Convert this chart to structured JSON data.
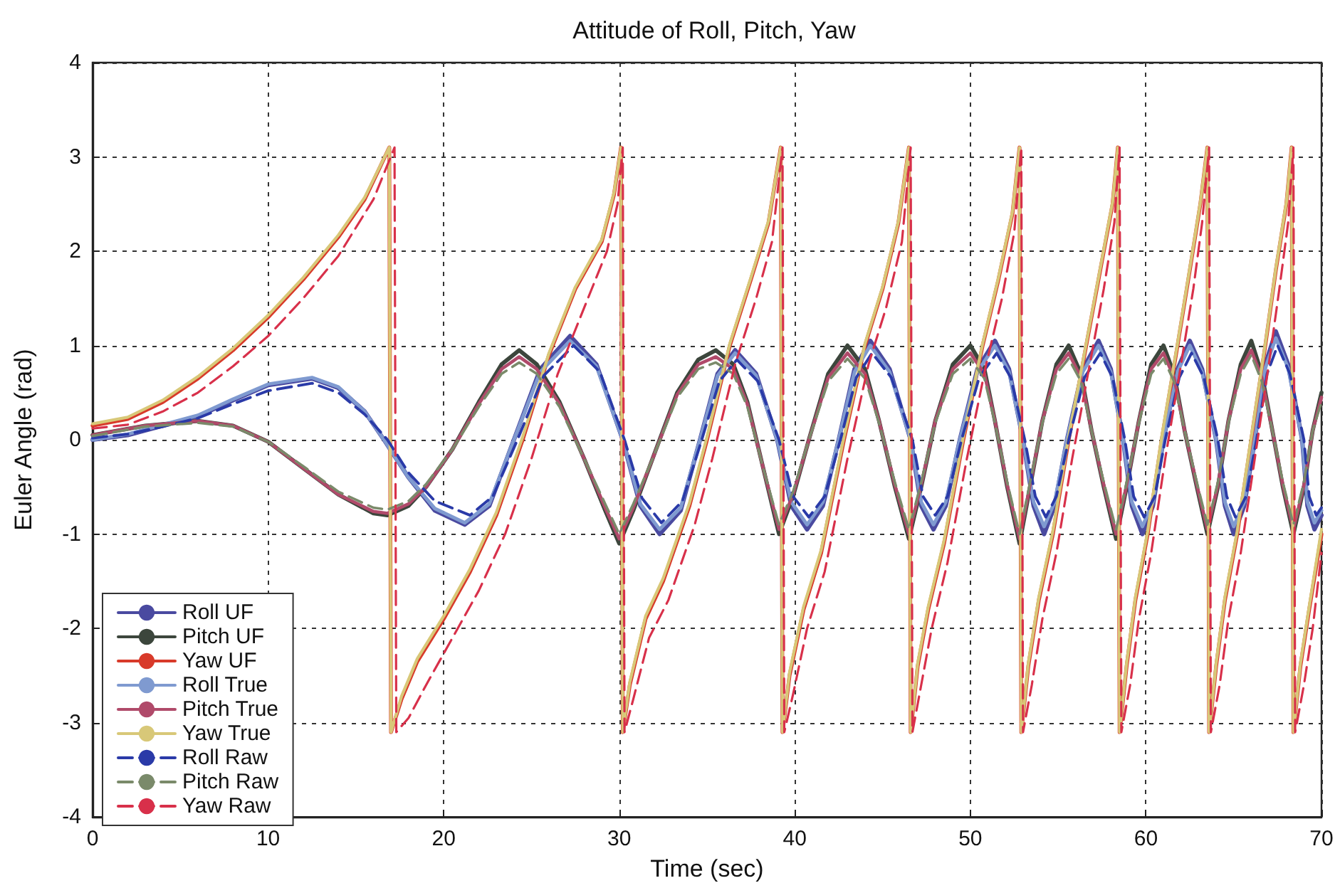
{
  "chart_data": {
    "type": "line",
    "title": "Attitude of Roll, Pitch, Yaw",
    "xlabel": "Time (sec)",
    "ylabel": "Euler Angle (rad)",
    "xlim": [
      0,
      70
    ],
    "xticks": [
      0,
      10,
      20,
      30,
      40,
      50,
      60,
      70
    ],
    "ylim": [
      -4,
      4
    ],
    "yticks": [
      -4,
      -3,
      -2,
      -1,
      0,
      1,
      2,
      3,
      4
    ],
    "grid": true,
    "legend": "bottom left",
    "marker": "none",
    "series": [
      {
        "name": "Roll UF",
        "color": "#4a4aa0",
        "line_style": "solid",
        "x": [
          0,
          2,
          4,
          6,
          8,
          10,
          12.5,
          14,
          15.5,
          16.6,
          18,
          19.5,
          21.2,
          22.6,
          24,
          25.5,
          27.2,
          28.7,
          30.2,
          31.2,
          32.3,
          33.5,
          34.6,
          35.6,
          36.6,
          37.8,
          39,
          39.8,
          40.7,
          41.6,
          42.5,
          43.4,
          44.3,
          45.4,
          46.6,
          47.2,
          47.9,
          48.6,
          49.4,
          50.4,
          51.4,
          52.2,
          53,
          53.6,
          54.2,
          54.8,
          55.5,
          56.4,
          57.3,
          58,
          58.7,
          59.2,
          59.8,
          60.4,
          61,
          61.8,
          62.5,
          63.2,
          64,
          64.5,
          65,
          65.6,
          66.2,
          66.8,
          67.4,
          68.1,
          68.9,
          69.2,
          69.6,
          70
        ],
        "values": [
          0,
          0.05,
          0.15,
          0.25,
          0.42,
          0.58,
          0.65,
          0.55,
          0.3,
          0,
          -0.4,
          -0.75,
          -0.9,
          -0.7,
          0,
          0.75,
          1.1,
          0.8,
          0,
          -0.7,
          -1,
          -0.75,
          0,
          0.7,
          0.95,
          0.7,
          0,
          -0.7,
          -0.95,
          -0.7,
          0,
          0.75,
          1.05,
          0.75,
          0,
          -0.7,
          -0.95,
          -0.7,
          0,
          0.75,
          1.05,
          0.75,
          0,
          -0.7,
          -1,
          -0.7,
          0,
          0.75,
          1.05,
          0.75,
          0,
          -0.7,
          -1,
          -0.7,
          0,
          0.75,
          1.05,
          0.75,
          0,
          -0.7,
          -1,
          -0.7,
          0,
          0.8,
          1.15,
          0.8,
          0,
          -0.7,
          -0.95,
          -0.8
        ]
      },
      {
        "name": "Pitch UF",
        "color": "#3c463c",
        "line_style": "solid",
        "x": [
          0,
          3,
          6,
          8,
          10,
          12,
          14,
          16,
          16.8,
          18,
          19,
          20.5,
          22,
          23.3,
          24.3,
          25.3,
          26.6,
          28,
          29.2,
          30,
          30.8,
          31.9,
          33.3,
          34.5,
          35.5,
          36.5,
          37.3,
          38.2,
          39.1,
          39.9,
          40.8,
          41.9,
          43,
          44,
          44.8,
          45.7,
          46.5,
          47.2,
          48,
          49,
          50,
          50.8,
          51.4,
          52.1,
          52.8,
          53.4,
          54.1,
          54.9,
          55.6,
          56.3,
          56.9,
          57.6,
          58.3,
          58.9,
          59.6,
          60.3,
          61,
          61.6,
          62.2,
          62.9,
          63.5,
          64.1,
          64.7,
          65.4,
          66,
          66.6,
          67.2,
          67.8,
          68.4,
          69,
          69.5,
          70
        ],
        "values": [
          0.05,
          0.15,
          0.2,
          0.15,
          -0.02,
          -0.3,
          -0.58,
          -0.78,
          -0.8,
          -0.7,
          -0.5,
          -0.1,
          0.4,
          0.8,
          0.95,
          0.8,
          0.4,
          -0.2,
          -0.75,
          -1.1,
          -0.75,
          -0.2,
          0.5,
          0.85,
          0.95,
          0.8,
          0.4,
          -0.3,
          -1,
          -0.6,
          0,
          0.7,
          1,
          0.75,
          0.2,
          -0.5,
          -1.05,
          -0.5,
          0.2,
          0.8,
          1,
          0.75,
          0.2,
          -0.5,
          -1.1,
          -0.5,
          0.2,
          0.8,
          1,
          0.7,
          0.1,
          -0.5,
          -1.05,
          -0.5,
          0.2,
          0.8,
          1,
          0.7,
          0.1,
          -0.5,
          -1,
          -0.5,
          0.2,
          0.8,
          1.05,
          0.7,
          0.1,
          -0.5,
          -1,
          -0.5,
          0.1,
          0.5
        ]
      },
      {
        "name": "Yaw UF",
        "color": "#d83a2a",
        "line_style": "solid",
        "x": [
          0,
          2,
          4,
          6,
          8,
          10,
          12,
          14,
          15.5,
          16.9,
          17,
          17.6,
          18.5,
          20,
          21.5,
          23,
          24.5,
          26,
          27.5,
          29,
          29.7,
          30.1,
          30.2,
          30.6,
          31.5,
          32.5,
          34,
          35,
          36.3,
          37.5,
          38.5,
          39.2,
          39.3,
          39.7,
          40.5,
          41.5,
          42.8,
          44,
          45,
          45.9,
          46.5,
          46.6,
          47,
          47.6,
          48.5,
          49.6,
          50.7,
          51.6,
          52.4,
          52.8,
          52.9,
          53.3,
          53.9,
          54.7,
          55.6,
          56.6,
          57.4,
          58.1,
          58.4,
          58.5,
          58.9,
          59.4,
          60.1,
          60.9,
          61.8,
          62.5,
          63.1,
          63.5,
          63.6,
          64,
          64.5,
          65.2,
          66,
          66.8,
          67.4,
          68,
          68.3,
          68.4,
          68.8,
          69.3,
          70
        ],
        "values": [
          0.15,
          0.22,
          0.4,
          0.65,
          0.95,
          1.3,
          1.7,
          2.15,
          2.55,
          3.1,
          -3.1,
          -2.75,
          -2.35,
          -1.9,
          -1.4,
          -0.8,
          0,
          0.9,
          1.6,
          2.1,
          2.6,
          3.1,
          -3.1,
          -2.6,
          -1.9,
          -1.5,
          -0.7,
          0,
          1,
          1.7,
          2.3,
          3.1,
          -3.1,
          -2.5,
          -1.8,
          -1.2,
          0,
          1,
          1.6,
          2.3,
          3.1,
          -3.1,
          -2.4,
          -1.8,
          -1.1,
          0,
          1,
          1.7,
          2.4,
          3.1,
          -3.1,
          -2.4,
          -1.7,
          -1,
          0,
          1,
          1.8,
          2.5,
          3.1,
          -3.1,
          -2.4,
          -1.7,
          -1,
          0,
          1,
          1.8,
          2.5,
          3.1,
          -3.1,
          -2.4,
          -1.7,
          -1,
          0,
          1,
          1.8,
          2.5,
          3.1,
          -3.1,
          -2.4,
          -1.8,
          -1
        ]
      },
      {
        "name": "Roll True",
        "color": "#7f9ad0",
        "line_style": "solid",
        "x": [
          0,
          2,
          4,
          6,
          8,
          10,
          12.5,
          14,
          15.5,
          16.6,
          18,
          19.5,
          21.2,
          22.6,
          24,
          25.5,
          27.2,
          28.7,
          30.2,
          31.2,
          32.3,
          33.5,
          34.6,
          35.6,
          36.6,
          37.8,
          39,
          39.8,
          40.7,
          41.6,
          42.5,
          43.4,
          44.3,
          45.4,
          46.6,
          47.2,
          47.9,
          48.6,
          49.4,
          50.4,
          51.4,
          52.2,
          53,
          53.6,
          54.2,
          54.8,
          55.5,
          56.4,
          57.3,
          58,
          58.7,
          59.2,
          59.8,
          60.4,
          61,
          61.8,
          62.5,
          63.2,
          64,
          64.5,
          65,
          65.6,
          66.2,
          66.8,
          67.4,
          68.1,
          68.9,
          69.2,
          69.6,
          70
        ],
        "values": [
          0,
          0.06,
          0.16,
          0.26,
          0.43,
          0.59,
          0.66,
          0.56,
          0.3,
          0,
          -0.4,
          -0.73,
          -0.88,
          -0.68,
          0,
          0.72,
          1.05,
          0.78,
          0,
          -0.68,
          -0.95,
          -0.72,
          0,
          0.68,
          0.92,
          0.68,
          0,
          -0.66,
          -0.9,
          -0.66,
          0,
          0.72,
          1,
          0.72,
          0,
          -0.66,
          -0.9,
          -0.66,
          0,
          0.72,
          1,
          0.72,
          0,
          -0.66,
          -0.92,
          -0.66,
          0,
          0.72,
          1,
          0.72,
          0,
          -0.66,
          -0.92,
          -0.66,
          0,
          0.72,
          1,
          0.72,
          0,
          -0.66,
          -0.92,
          -0.66,
          0,
          0.76,
          1.08,
          0.76,
          0,
          -0.66,
          -0.88,
          -0.75
        ]
      },
      {
        "name": "Pitch True",
        "color": "#b04a6a",
        "line_style": "solid",
        "x": [
          0,
          3,
          6,
          8,
          10,
          12,
          14,
          16,
          16.8,
          18,
          19,
          20.5,
          22,
          23.3,
          24.3,
          25.3,
          26.6,
          28,
          29.2,
          30,
          30.8,
          31.9,
          33.3,
          34.5,
          35.5,
          36.5,
          37.3,
          38.2,
          39.1,
          39.9,
          40.8,
          41.9,
          43,
          44,
          44.8,
          45.7,
          46.5,
          47.2,
          48,
          49,
          50,
          50.8,
          51.4,
          52.1,
          52.8,
          53.4,
          54.1,
          54.9,
          55.6,
          56.3,
          56.9,
          57.6,
          58.3,
          58.9,
          59.6,
          60.3,
          61,
          61.6,
          62.2,
          62.9,
          63.5,
          64.1,
          64.7,
          65.4,
          66,
          66.6,
          67.2,
          67.8,
          68.4,
          69,
          69.5,
          70
        ],
        "values": [
          0.05,
          0.15,
          0.2,
          0.15,
          -0.02,
          -0.3,
          -0.58,
          -0.76,
          -0.78,
          -0.68,
          -0.5,
          -0.1,
          0.38,
          0.75,
          0.88,
          0.75,
          0.38,
          -0.2,
          -0.72,
          -1.05,
          -0.72,
          -0.2,
          0.48,
          0.8,
          0.88,
          0.75,
          0.38,
          -0.3,
          -0.95,
          -0.58,
          0,
          0.66,
          0.92,
          0.7,
          0.2,
          -0.48,
          -1,
          -0.48,
          0.2,
          0.75,
          0.92,
          0.7,
          0.2,
          -0.48,
          -1.05,
          -0.48,
          0.2,
          0.75,
          0.92,
          0.66,
          0.1,
          -0.48,
          -1,
          -0.48,
          0.2,
          0.75,
          0.92,
          0.66,
          0.1,
          -0.48,
          -0.95,
          -0.48,
          0.2,
          0.75,
          0.95,
          0.66,
          0.1,
          -0.48,
          -0.95,
          -0.48,
          0.1,
          0.45
        ]
      },
      {
        "name": "Yaw True",
        "color": "#d8c878",
        "line_style": "solid",
        "x": [
          0,
          2,
          4,
          6,
          8,
          10,
          12,
          14,
          15.5,
          16.9,
          17,
          17.6,
          18.5,
          20,
          21.5,
          23,
          24.5,
          26,
          27.5,
          29,
          29.7,
          30.1,
          30.2,
          30.6,
          31.5,
          32.5,
          34,
          35,
          36.3,
          37.5,
          38.5,
          39.2,
          39.3,
          39.7,
          40.5,
          41.5,
          42.8,
          44,
          45,
          45.9,
          46.5,
          46.6,
          47,
          47.6,
          48.5,
          49.6,
          50.7,
          51.6,
          52.4,
          52.8,
          52.9,
          53.3,
          53.9,
          54.7,
          55.6,
          56.6,
          57.4,
          58.1,
          58.4,
          58.5,
          58.9,
          59.4,
          60.1,
          60.9,
          61.8,
          62.5,
          63.1,
          63.5,
          63.6,
          64,
          64.5,
          65.2,
          66,
          66.8,
          67.4,
          68,
          68.3,
          68.4,
          68.8,
          69.3,
          70
        ],
        "values": [
          0.17,
          0.24,
          0.42,
          0.67,
          0.97,
          1.32,
          1.72,
          2.17,
          2.57,
          3.1,
          -3.1,
          -2.72,
          -2.32,
          -1.87,
          -1.37,
          -0.77,
          0.03,
          0.92,
          1.62,
          2.12,
          2.62,
          3.1,
          -3.1,
          -2.57,
          -1.87,
          -1.47,
          -0.67,
          0.03,
          1.02,
          1.72,
          2.32,
          3.1,
          -3.1,
          -2.47,
          -1.77,
          -1.17,
          0.03,
          1.02,
          1.62,
          2.32,
          3.1,
          -3.1,
          -2.37,
          -1.77,
          -1.07,
          0.03,
          1.02,
          1.72,
          2.42,
          3.1,
          -3.1,
          -2.37,
          -1.67,
          -0.97,
          0.03,
          1.02,
          1.82,
          2.52,
          3.1,
          -3.1,
          -2.37,
          -1.67,
          -0.97,
          0.03,
          1.02,
          1.82,
          2.52,
          3.1,
          -3.1,
          -2.37,
          -1.67,
          -0.97,
          0.03,
          1.02,
          1.82,
          2.52,
          3.1,
          -3.1,
          -2.37,
          -1.77,
          -0.95
        ]
      },
      {
        "name": "Roll Raw",
        "color": "#2a3aa8",
        "line_style": "dashed",
        "x": [
          0,
          2,
          4,
          6,
          8,
          10,
          12.5,
          14,
          15.5,
          16.8,
          18,
          19.5,
          21.5,
          22.8,
          24.2,
          25.7,
          27.4,
          28.9,
          30.3,
          31.3,
          32.4,
          33.6,
          34.7,
          35.7,
          36.7,
          37.9,
          39.1,
          39.9,
          40.8,
          41.7,
          42.6,
          43.5,
          44.4,
          45.5,
          46.7,
          47.3,
          48,
          48.7,
          49.5,
          50.5,
          51.5,
          52.3,
          53.1,
          53.7,
          54.3,
          54.9,
          55.6,
          56.5,
          57.4,
          58.1,
          58.8,
          59.3,
          59.9,
          60.5,
          61.1,
          61.9,
          62.6,
          63.3,
          64.1,
          64.6,
          65.1,
          65.7,
          66.3,
          66.9,
          67.5,
          68.2,
          69,
          69.3,
          69.7,
          70
        ],
        "values": [
          0.02,
          0.06,
          0.14,
          0.23,
          0.38,
          0.52,
          0.6,
          0.5,
          0.27,
          0,
          -0.35,
          -0.65,
          -0.8,
          -0.6,
          0,
          0.68,
          1,
          0.72,
          0,
          -0.62,
          -0.88,
          -0.65,
          0,
          0.62,
          0.85,
          0.62,
          0,
          -0.6,
          -0.82,
          -0.6,
          0,
          0.66,
          0.92,
          0.66,
          0,
          -0.6,
          -0.8,
          -0.6,
          0,
          0.66,
          0.92,
          0.66,
          0,
          -0.6,
          -0.82,
          -0.6,
          0,
          0.66,
          0.92,
          0.66,
          0,
          -0.6,
          -0.82,
          -0.6,
          0,
          0.66,
          0.92,
          0.66,
          0,
          -0.6,
          -0.82,
          -0.6,
          0,
          0.7,
          1,
          0.7,
          0,
          -0.6,
          -0.8,
          -0.72
        ]
      },
      {
        "name": "Pitch Raw",
        "color": "#7a8a6a",
        "line_style": "dashed",
        "x": [
          0,
          3,
          6,
          8,
          10,
          12,
          14,
          16,
          16.8,
          18,
          19,
          20.5,
          22,
          23.3,
          24.3,
          25.3,
          26.6,
          28,
          29.2,
          30,
          30.8,
          31.9,
          33.3,
          34.5,
          35.5,
          36.5,
          37.3,
          38.2,
          39.1,
          39.9,
          40.8,
          41.9,
          43,
          44,
          44.8,
          45.7,
          46.5,
          47.2,
          48,
          49,
          50,
          50.8,
          51.4,
          52.1,
          52.8,
          53.4,
          54.1,
          54.9,
          55.6,
          56.3,
          56.9,
          57.6,
          58.3,
          58.9,
          59.6,
          60.3,
          61,
          61.6,
          62.2,
          62.9,
          63.5,
          64.1,
          64.7,
          65.4,
          66,
          66.6,
          67.2,
          67.8,
          68.4,
          69,
          69.5,
          70
        ],
        "values": [
          0.04,
          0.14,
          0.18,
          0.14,
          -0.02,
          -0.28,
          -0.55,
          -0.72,
          -0.74,
          -0.65,
          -0.47,
          -0.1,
          0.35,
          0.7,
          0.82,
          0.7,
          0.35,
          -0.2,
          -0.68,
          -1,
          -0.68,
          -0.2,
          0.45,
          0.75,
          0.82,
          0.7,
          0.35,
          -0.3,
          -0.9,
          -0.55,
          0,
          0.62,
          0.86,
          0.65,
          0.18,
          -0.45,
          -0.95,
          -0.45,
          0.18,
          0.7,
          0.86,
          0.65,
          0.18,
          -0.45,
          -1,
          -0.45,
          0.18,
          0.7,
          0.86,
          0.62,
          0.1,
          -0.45,
          -0.95,
          -0.45,
          0.18,
          0.7,
          0.86,
          0.62,
          0.1,
          -0.45,
          -0.9,
          -0.45,
          0.18,
          0.7,
          0.9,
          0.62,
          0.1,
          -0.45,
          -0.9,
          -0.45,
          0.1,
          0.4
        ]
      },
      {
        "name": "Yaw Raw",
        "color": "#d8304a",
        "line_style": "dashed",
        "x": [
          0,
          2,
          4,
          6,
          8,
          10,
          12,
          14,
          16,
          17.2,
          17.3,
          18,
          19,
          20.5,
          22,
          23.5,
          25,
          26.5,
          28,
          29.3,
          29.9,
          30.2,
          30.3,
          30.8,
          31.7,
          32.8,
          34.3,
          35.3,
          36.6,
          37.8,
          38.7,
          39.3,
          39.4,
          39.9,
          40.7,
          41.7,
          43,
          44.2,
          45.2,
          46.1,
          46.6,
          46.7,
          47.2,
          47.8,
          48.7,
          49.8,
          50.9,
          51.8,
          52.5,
          52.9,
          53,
          53.5,
          54.1,
          54.9,
          55.8,
          56.8,
          57.6,
          58.2,
          58.5,
          58.6,
          59.1,
          59.6,
          60.3,
          61.1,
          62,
          62.7,
          63.2,
          63.6,
          63.7,
          64.2,
          64.7,
          65.4,
          66.2,
          67,
          67.6,
          68.1,
          68.4,
          68.5,
          69,
          69.5,
          70
        ],
        "values": [
          0.12,
          0.16,
          0.3,
          0.5,
          0.78,
          1.1,
          1.5,
          1.95,
          2.55,
          3.1,
          -3.1,
          -2.95,
          -2.6,
          -2.1,
          -1.6,
          -1,
          -0.2,
          0.7,
          1.4,
          2,
          2.5,
          3.1,
          -3.1,
          -2.75,
          -2.1,
          -1.7,
          -0.9,
          -0.2,
          0.8,
          1.5,
          2.1,
          3.1,
          -3.1,
          -2.7,
          -2,
          -1.4,
          -0.2,
          0.8,
          1.4,
          2.1,
          3.1,
          -3.1,
          -2.6,
          -2,
          -1.3,
          -0.2,
          0.8,
          1.5,
          2.2,
          3.1,
          -3.1,
          -2.6,
          -1.9,
          -1.2,
          -0.2,
          0.8,
          1.6,
          2.3,
          3.1,
          -3.1,
          -2.6,
          -1.9,
          -1.2,
          -0.2,
          0.8,
          1.6,
          2.3,
          3.1,
          -3.1,
          -2.6,
          -1.9,
          -1.2,
          -0.2,
          0.8,
          1.6,
          2.3,
          3.1,
          -3.1,
          -2.6,
          -2,
          -1.2
        ]
      }
    ]
  }
}
